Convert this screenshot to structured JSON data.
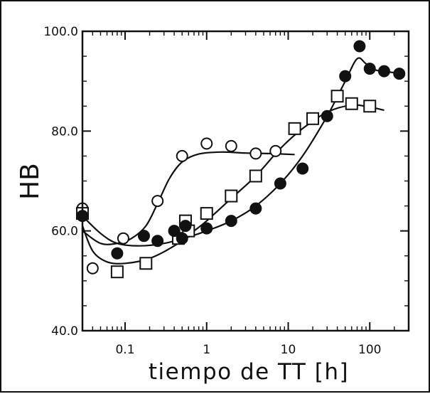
{
  "chart_data": {
    "type": "scatter",
    "title": "",
    "xlabel": "tiempo de TT [h]",
    "ylabel": "HB",
    "x_scale": "log",
    "xlim": [
      0.03,
      300
    ],
    "ylim": [
      40,
      100
    ],
    "x_ticks": [
      {
        "value": 0.1,
        "label": "0.1"
      },
      {
        "value": 1,
        "label": "1"
      },
      {
        "value": 10,
        "label": "10"
      },
      {
        "value": 100,
        "label": "100"
      }
    ],
    "y_ticks": [
      {
        "value": 40,
        "label": "40.0"
      },
      {
        "value": 60,
        "label": "60.0"
      },
      {
        "value": 80,
        "label": "80.0"
      },
      {
        "value": 100,
        "label": "100.0"
      }
    ],
    "grid": false,
    "legend": "none",
    "series": [
      {
        "marker": "open-circle",
        "color": "#111111",
        "points": [
          [
            0.03,
            64.5
          ],
          [
            0.04,
            52.5
          ],
          [
            0.095,
            58.5
          ],
          [
            0.25,
            66
          ],
          [
            0.5,
            75
          ],
          [
            1,
            77.5
          ],
          [
            2,
            77
          ],
          [
            4,
            75.5
          ],
          [
            7,
            76
          ]
        ],
        "curve": [
          [
            0.03,
            60
          ],
          [
            0.05,
            57.5
          ],
          [
            0.08,
            57.5
          ],
          [
            0.12,
            58.5
          ],
          [
            0.18,
            61
          ],
          [
            0.25,
            65.5
          ],
          [
            0.35,
            70.5
          ],
          [
            0.5,
            73.8
          ],
          [
            0.8,
            75.4
          ],
          [
            1.5,
            75.8
          ],
          [
            3,
            75.6
          ],
          [
            6,
            75.5
          ],
          [
            12,
            75.3
          ]
        ]
      },
      {
        "marker": "open-square",
        "color": "#111111",
        "points": [
          [
            0.03,
            63.5
          ],
          [
            0.08,
            51.8
          ],
          [
            0.18,
            53.5
          ],
          [
            0.45,
            58.5
          ],
          [
            0.55,
            62
          ],
          [
            0.6,
            60
          ],
          [
            1,
            63.5
          ],
          [
            2,
            67
          ],
          [
            4,
            71
          ],
          [
            12,
            80.5
          ],
          [
            20,
            82.5
          ],
          [
            40,
            87
          ],
          [
            60,
            85.5
          ],
          [
            100,
            85
          ]
        ],
        "curve": [
          [
            0.03,
            61
          ],
          [
            0.04,
            56
          ],
          [
            0.06,
            53.8
          ],
          [
            0.1,
            53.5
          ],
          [
            0.2,
            54.5
          ],
          [
            0.4,
            57
          ],
          [
            0.7,
            60
          ],
          [
            1,
            62
          ],
          [
            2,
            66.5
          ],
          [
            4,
            71
          ],
          [
            8,
            76.5
          ],
          [
            15,
            80.5
          ],
          [
            30,
            83.8
          ],
          [
            60,
            85.2
          ],
          [
            100,
            84.8
          ],
          [
            150,
            84.2
          ]
        ]
      },
      {
        "marker": "filled-circle",
        "color": "#111111",
        "points": [
          [
            0.03,
            63
          ],
          [
            0.08,
            55.5
          ],
          [
            0.17,
            59
          ],
          [
            0.25,
            58
          ],
          [
            0.4,
            60
          ],
          [
            0.5,
            58.5
          ],
          [
            0.55,
            61
          ],
          [
            1,
            60.5
          ],
          [
            2,
            62
          ],
          [
            4,
            64.5
          ],
          [
            8,
            69.5
          ],
          [
            15,
            72.5
          ],
          [
            30,
            83
          ],
          [
            50,
            91
          ],
          [
            75,
            97
          ],
          [
            100,
            92.5
          ],
          [
            150,
            92
          ],
          [
            230,
            91.5
          ]
        ],
        "curve": [
          [
            0.03,
            63
          ],
          [
            0.05,
            59.5
          ],
          [
            0.08,
            57.5
          ],
          [
            0.15,
            57
          ],
          [
            0.3,
            57.5
          ],
          [
            0.6,
            58.8
          ],
          [
            1,
            60
          ],
          [
            2,
            62
          ],
          [
            4,
            65
          ],
          [
            8,
            69.5
          ],
          [
            15,
            75
          ],
          [
            30,
            83
          ],
          [
            50,
            90
          ],
          [
            70,
            94.5
          ],
          [
            90,
            93.5
          ],
          [
            120,
            92.2
          ],
          [
            180,
            91.8
          ],
          [
            250,
            91.5
          ]
        ]
      }
    ]
  }
}
